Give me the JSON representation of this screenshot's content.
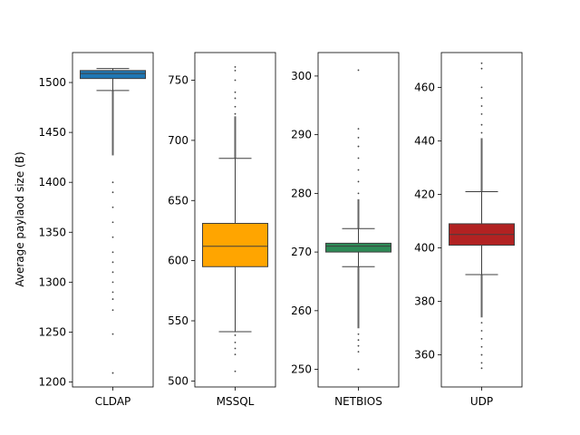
{
  "figure": {
    "ylabel": "Average paylaod size (B)"
  },
  "chart_data": [
    {
      "type": "box",
      "category": "CLDAP",
      "color": "#1f77b4",
      "ylim": [
        1195,
        1530
      ],
      "yticks": [
        1200,
        1250,
        1300,
        1350,
        1400,
        1450,
        1500
      ],
      "box": {
        "whisker_low": 1492,
        "q1": 1504,
        "median": 1509,
        "q3": 1512,
        "whisker_high": 1514
      },
      "outliers_dense": [
        1427,
        1492
      ],
      "outliers_sparse": [
        1400,
        1390,
        1375,
        1360,
        1345,
        1330,
        1320,
        1310,
        1300,
        1290,
        1283,
        1272,
        1248,
        1209
      ]
    },
    {
      "type": "box",
      "category": "MSSQL",
      "color": "#ffa500",
      "ylim": [
        495,
        773
      ],
      "yticks": [
        500,
        550,
        600,
        650,
        700,
        750
      ],
      "box": {
        "whisker_low": 541,
        "q1": 595,
        "median": 612,
        "q3": 631,
        "whisker_high": 685
      },
      "outliers_dense": [
        685,
        720
      ],
      "outliers_sparse": [
        722,
        728,
        735,
        740,
        750,
        758,
        761,
        538,
        532,
        527,
        522,
        508
      ]
    },
    {
      "type": "box",
      "category": "NETBIOS",
      "color": "#2e8b57",
      "ylim": [
        247,
        304
      ],
      "yticks": [
        250,
        260,
        270,
        280,
        290,
        300
      ],
      "box": {
        "whisker_low": 267.5,
        "q1": 270,
        "median": 271,
        "q3": 271.5,
        "whisker_high": 274
      },
      "outliers_dense": [
        274,
        279,
        257,
        267.5
      ],
      "outliers_sparse": [
        280,
        282,
        284,
        286,
        288,
        289.5,
        291,
        301,
        256,
        255,
        254,
        253,
        250
      ]
    },
    {
      "type": "box",
      "category": "UDP",
      "color": "#b22222",
      "ylim": [
        348,
        473
      ],
      "yticks": [
        360,
        380,
        400,
        420,
        440,
        460
      ],
      "box": {
        "whisker_low": 390,
        "q1": 401,
        "median": 405,
        "q3": 409,
        "whisker_high": 421
      },
      "outliers_dense": [
        421,
        441,
        374,
        390
      ],
      "outliers_sparse": [
        443,
        446,
        450,
        453,
        456,
        460,
        467,
        469,
        372,
        369,
        366,
        363,
        360,
        357,
        355
      ]
    }
  ]
}
